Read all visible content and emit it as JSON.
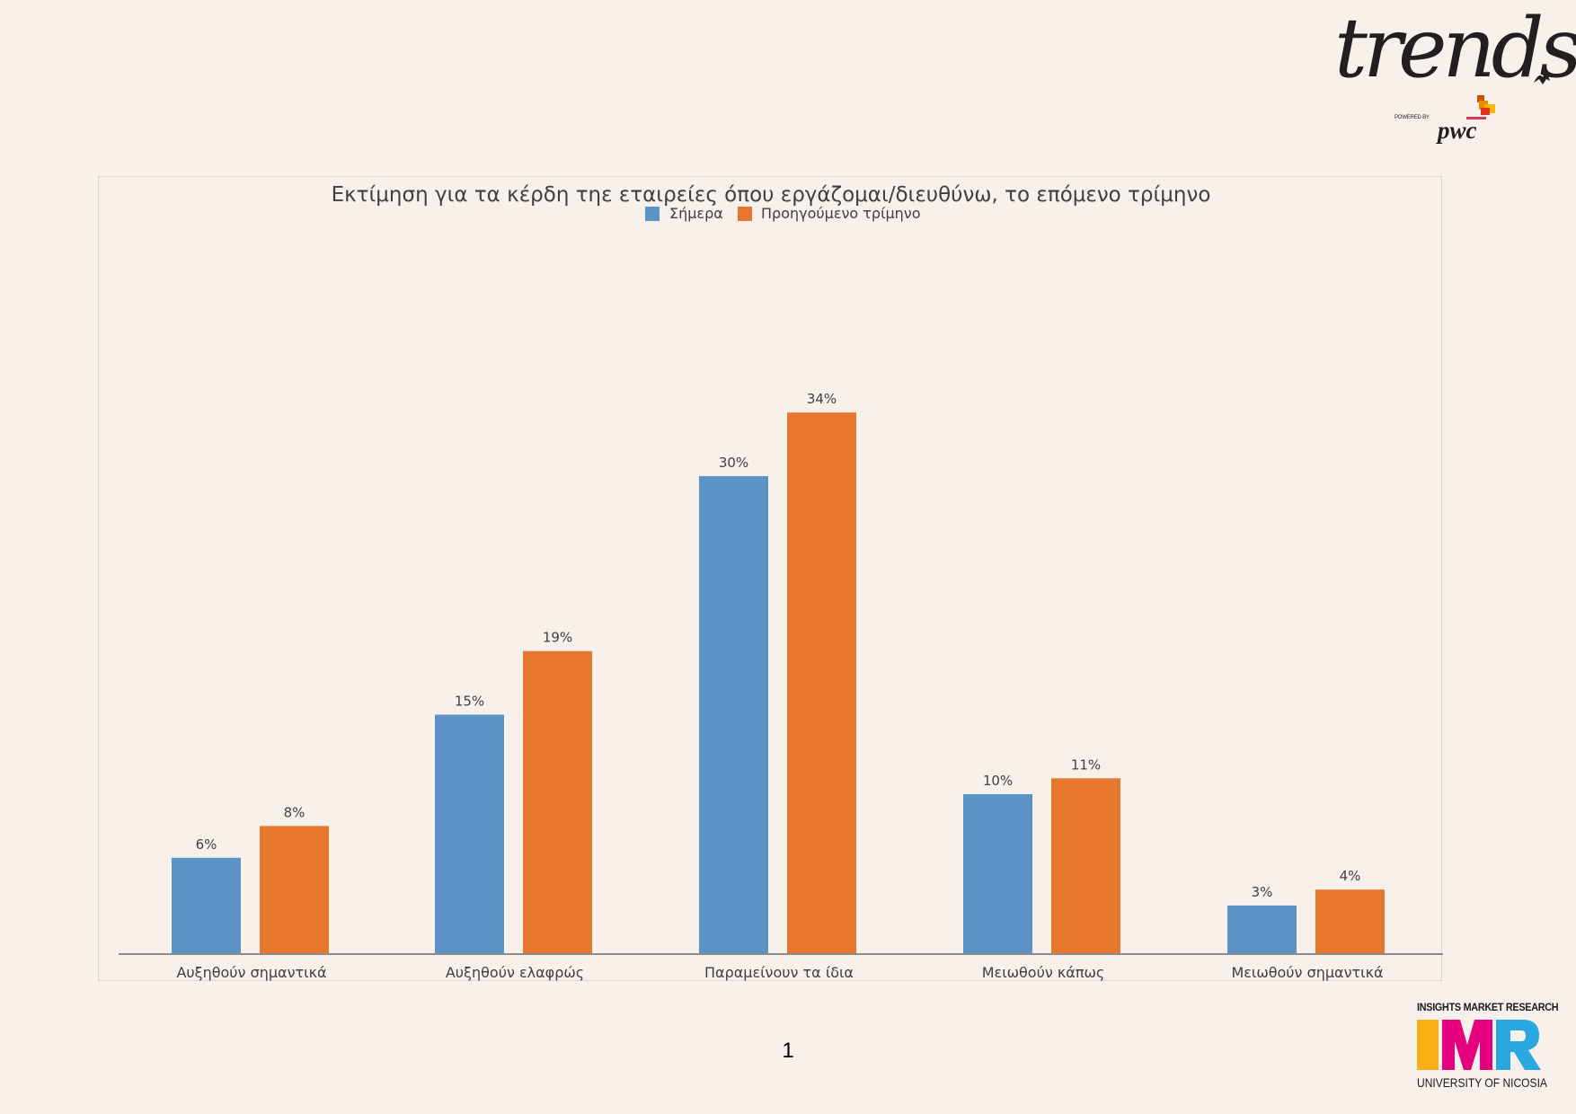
{
  "brand": {
    "trends_logo": "trends",
    "powered_by": "POWERED BY",
    "pwc_logo": "pwc",
    "imr_top": "INSIGHTS MARKET RESEARCH",
    "imr_logo": "IMR",
    "imr_bottom": "UNIVERSITY OF NICOSIA",
    "imr_colors": [
      "#f9b017",
      "#e6007e",
      "#29a8e0"
    ]
  },
  "page": {
    "number": "1"
  },
  "colors": {
    "today": "#5b93c4",
    "previous": "#e8772e",
    "axis": "#8c8c8c",
    "text": "#404040"
  },
  "chart_data": {
    "type": "bar",
    "title": "Εκτίμηση για τα κέρδη τηε εταιρείες όπου εργάζομαι/διευθύνω, το επόμενο τρίμηνο",
    "categories": [
      "Αυξηθούν σημαντικά",
      "Αυξηθούν ελαφρώς",
      "Παραμείνουν τα ίδια",
      "Μειωθούν κάπως",
      "Μειωθούν σημαντικά"
    ],
    "series": [
      {
        "name": "Σήμερα",
        "values": [
          6,
          15,
          30,
          10,
          3
        ],
        "labels": [
          "6%",
          "15%",
          "30%",
          "10%",
          "3%"
        ],
        "color": "#5b93c4"
      },
      {
        "name": "Προηγούμενο τρίμηνο",
        "values": [
          8,
          19,
          34,
          11,
          4
        ],
        "labels": [
          "8%",
          "19%",
          "34%",
          "11%",
          "4%"
        ],
        "color": "#e8772e"
      }
    ],
    "ylim": [
      0,
      40
    ],
    "grid": false,
    "legend": "top-center",
    "xlabel": "",
    "ylabel": ""
  }
}
